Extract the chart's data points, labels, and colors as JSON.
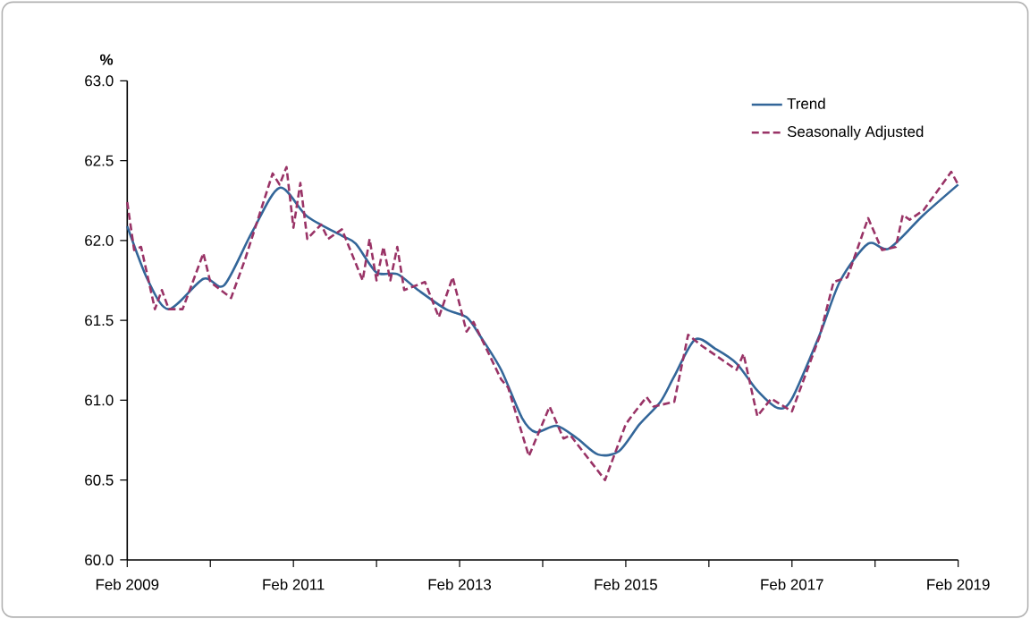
{
  "chart_data": {
    "type": "line",
    "ylabel": "%",
    "xlim": [
      "2009-02",
      "2019-02"
    ],
    "xticks": [
      {
        "value": "2009-02",
        "label": "Feb 2009"
      },
      {
        "value": "2010-02",
        "label": null
      },
      {
        "value": "2011-02",
        "label": "Feb 2011"
      },
      {
        "value": "2012-02",
        "label": null
      },
      {
        "value": "2013-02",
        "label": "Feb 2013"
      },
      {
        "value": "2014-02",
        "label": null
      },
      {
        "value": "2015-02",
        "label": "Feb 2015"
      },
      {
        "value": "2016-02",
        "label": null
      },
      {
        "value": "2017-02",
        "label": "Feb 2017"
      },
      {
        "value": "2018-02",
        "label": null
      },
      {
        "value": "2019-02",
        "label": "Feb 2019"
      }
    ],
    "ylim": [
      60,
      63
    ],
    "yticks": [
      {
        "value": 60,
        "label": "60.0"
      },
      {
        "value": 60.5,
        "label": "60.5"
      },
      {
        "value": 61,
        "label": "61.0"
      },
      {
        "value": 61.5,
        "label": "61.5"
      },
      {
        "value": 62,
        "label": "62.0"
      },
      {
        "value": 62.5,
        "label": "62.5"
      },
      {
        "value": 63,
        "label": "63.0"
      }
    ],
    "legend": "top right",
    "marker": "none",
    "series": [
      {
        "name": "Trend",
        "color": "#336699",
        "line_style": "solid",
        "x": [
          "2009-02",
          "2009-05",
          "2009-08",
          "2010-01",
          "2010-04",
          "2010-08",
          "2010-12",
          "2011-04",
          "2011-09",
          "2011-11",
          "2012-02",
          "2012-05",
          "2012-08",
          "2012-12",
          "2013-03",
          "2013-05",
          "2013-08",
          "2013-11",
          "2014-01",
          "2014-04",
          "2014-07",
          "2014-10",
          "2015-01",
          "2015-04",
          "2015-07",
          "2015-09",
          "2015-12",
          "2016-03",
          "2016-06",
          "2016-09",
          "2016-12",
          "2017-02",
          "2017-06",
          "2017-09",
          "2018-01",
          "2018-04",
          "2018-09",
          "2019-02"
        ],
        "values": [
          62.09,
          61.75,
          61.57,
          61.76,
          61.72,
          62.05,
          62.33,
          62.15,
          62.03,
          61.98,
          61.8,
          61.79,
          61.69,
          61.57,
          61.52,
          61.4,
          61.19,
          60.89,
          60.8,
          60.84,
          60.76,
          60.66,
          60.68,
          60.85,
          60.99,
          61.15,
          61.38,
          61.32,
          61.23,
          61.06,
          60.95,
          61.01,
          61.41,
          61.75,
          61.98,
          61.95,
          62.16,
          62.35
        ]
      },
      {
        "name": "Seasonally Adjusted",
        "color": "#993366",
        "line_style": "dashed",
        "x": [
          "2009-02",
          "2009-03",
          "2009-04",
          "2009-06",
          "2009-07",
          "2009-08",
          "2009-10",
          "2010-01",
          "2010-02",
          "2010-05",
          "2010-07",
          "2010-11",
          "2010-12",
          "2011-01",
          "2011-02",
          "2011-03",
          "2011-04",
          "2011-06",
          "2011-07",
          "2011-09",
          "2011-12",
          "2012-01",
          "2012-02",
          "2012-03",
          "2012-04",
          "2012-05",
          "2012-06",
          "2012-09",
          "2012-11",
          "2013-01",
          "2013-03",
          "2013-04",
          "2013-08",
          "2013-09",
          "2013-12",
          "2014-03",
          "2014-05",
          "2014-06",
          "2014-11",
          "2015-02",
          "2015-03",
          "2015-05",
          "2015-06",
          "2015-09",
          "2015-11",
          "2016-01",
          "2016-06",
          "2016-07",
          "2016-09",
          "2016-11",
          "2017-02",
          "2017-06",
          "2017-08",
          "2017-10",
          "2018-01",
          "2018-03",
          "2018-05",
          "2018-06",
          "2018-07",
          "2018-09",
          "2019-01",
          "2019-02"
        ],
        "values": [
          62.24,
          61.94,
          61.96,
          61.57,
          61.69,
          61.57,
          61.57,
          61.92,
          61.74,
          61.64,
          61.88,
          62.42,
          62.35,
          62.46,
          62.08,
          62.36,
          62.01,
          62.1,
          62.01,
          62.07,
          61.75,
          62.01,
          61.75,
          61.96,
          61.75,
          61.96,
          61.69,
          61.74,
          61.52,
          61.77,
          61.43,
          61.49,
          61.13,
          61.08,
          60.65,
          60.96,
          60.76,
          60.78,
          60.5,
          60.85,
          60.91,
          61.02,
          60.96,
          60.99,
          61.41,
          61.34,
          61.19,
          61.29,
          60.9,
          61.01,
          60.93,
          61.4,
          61.74,
          61.77,
          62.14,
          61.94,
          61.96,
          62.16,
          62.13,
          62.19,
          62.43,
          62.35
        ]
      }
    ]
  }
}
